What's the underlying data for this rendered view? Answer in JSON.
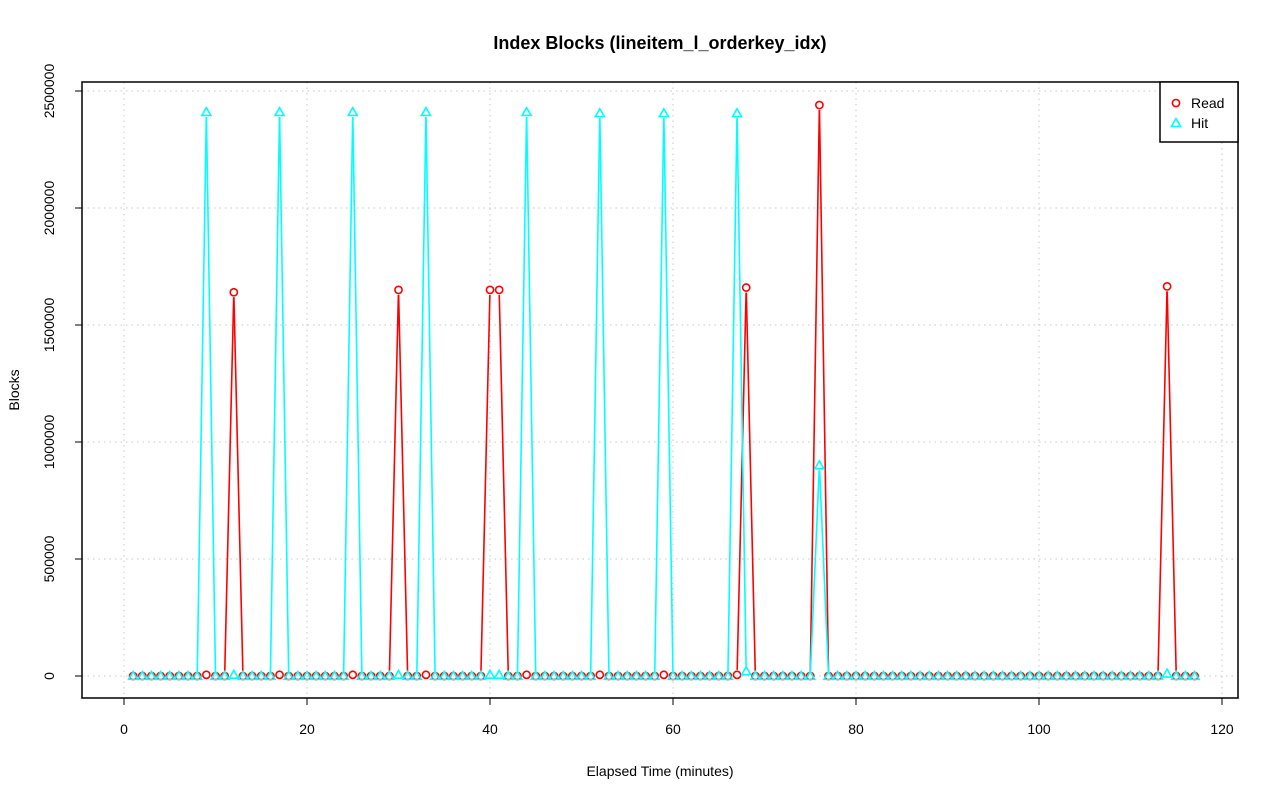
{
  "chart_data": {
    "type": "line",
    "title": "Index Blocks (lineitem_l_orderkey_idx)",
    "xlabel": "Elapsed Time (minutes)",
    "ylabel": "Blocks",
    "xlim": [
      0,
      120
    ],
    "ylim": [
      0,
      2500000
    ],
    "x_ticks": [
      0,
      20,
      40,
      60,
      80,
      100,
      120
    ],
    "y_ticks": [
      0,
      500000,
      1000000,
      1500000,
      2000000,
      2500000
    ],
    "x_tick_labels": [
      "0",
      "20",
      "40",
      "60",
      "80",
      "100",
      "120"
    ],
    "y_tick_labels": [
      "0",
      "500000",
      "1000000",
      "1500000",
      "2000000",
      "2500000"
    ],
    "grid": true,
    "legend_position": "top-right",
    "x": [
      1,
      2,
      3,
      4,
      5,
      6,
      7,
      8,
      9,
      10,
      11,
      12,
      13,
      14,
      15,
      16,
      17,
      18,
      19,
      20,
      21,
      22,
      23,
      24,
      25,
      26,
      27,
      28,
      29,
      30,
      31,
      32,
      33,
      34,
      35,
      36,
      37,
      38,
      39,
      40,
      41,
      42,
      43,
      44,
      45,
      46,
      47,
      48,
      49,
      50,
      51,
      52,
      53,
      54,
      55,
      56,
      57,
      58,
      59,
      60,
      61,
      62,
      63,
      64,
      65,
      66,
      67,
      68,
      69,
      70,
      71,
      72,
      73,
      74,
      75,
      76,
      77,
      78,
      79,
      80,
      81,
      82,
      83,
      84,
      85,
      86,
      87,
      88,
      89,
      90,
      91,
      92,
      93,
      94,
      95,
      96,
      97,
      98,
      99,
      100,
      101,
      102,
      103,
      104,
      105,
      106,
      107,
      108,
      109,
      110,
      111,
      112,
      113,
      114,
      115,
      116,
      117
    ],
    "series": [
      {
        "name": "Read",
        "color": "#ff0000",
        "marker": "circle",
        "values": [
          0,
          0,
          0,
          0,
          0,
          0,
          0,
          0,
          5000,
          0,
          0,
          1640000,
          0,
          0,
          0,
          0,
          5000,
          0,
          0,
          0,
          0,
          0,
          0,
          0,
          5000,
          0,
          0,
          0,
          0,
          1650000,
          0,
          0,
          5000,
          0,
          0,
          0,
          0,
          0,
          0,
          1650000,
          1650000,
          0,
          0,
          5000,
          0,
          0,
          0,
          0,
          0,
          0,
          0,
          5000,
          0,
          0,
          0,
          0,
          0,
          0,
          5000,
          0,
          0,
          0,
          0,
          0,
          0,
          0,
          5000,
          1660000,
          0,
          0,
          0,
          0,
          0,
          0,
          0,
          2440000,
          0,
          0,
          0,
          0,
          0,
          0,
          0,
          0,
          0,
          0,
          0,
          0,
          0,
          0,
          0,
          0,
          0,
          0,
          0,
          0,
          0,
          0,
          0,
          0,
          0,
          0,
          0,
          0,
          0,
          0,
          0,
          0,
          0,
          0,
          0,
          0,
          0,
          1665000,
          0,
          0,
          0
        ]
      },
      {
        "name": "Hit",
        "color": "#00ffff",
        "marker": "triangle",
        "values": [
          0,
          0,
          0,
          0,
          0,
          0,
          0,
          0,
          2410000,
          0,
          0,
          5000,
          0,
          0,
          0,
          0,
          2410000,
          0,
          0,
          0,
          0,
          0,
          0,
          0,
          2410000,
          0,
          0,
          0,
          0,
          5000,
          0,
          0,
          2410000,
          0,
          0,
          0,
          0,
          0,
          0,
          5000,
          5000,
          0,
          0,
          2410000,
          0,
          0,
          0,
          0,
          0,
          0,
          0,
          2405000,
          0,
          0,
          0,
          0,
          0,
          0,
          2405000,
          0,
          0,
          0,
          0,
          0,
          0,
          0,
          2405000,
          20000,
          0,
          0,
          0,
          0,
          0,
          0,
          0,
          900000,
          0,
          0,
          0,
          0,
          0,
          0,
          0,
          0,
          0,
          0,
          0,
          0,
          0,
          0,
          0,
          0,
          0,
          0,
          0,
          0,
          0,
          0,
          0,
          0,
          0,
          0,
          0,
          0,
          0,
          0,
          0,
          0,
          0,
          0,
          0,
          0,
          0,
          10000,
          0,
          0,
          0
        ]
      }
    ]
  }
}
